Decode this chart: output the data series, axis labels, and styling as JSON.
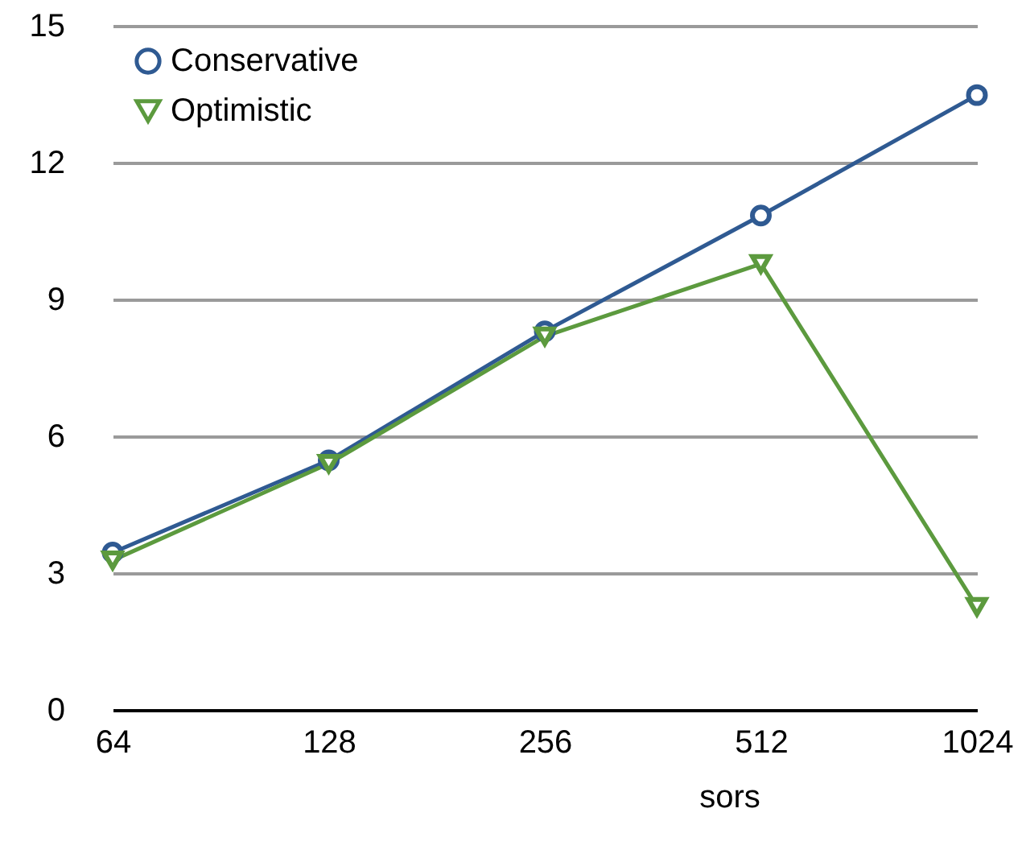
{
  "chart_data": {
    "type": "line",
    "xlabel": "sors",
    "categories": [
      "64",
      "128",
      "256",
      "512",
      "1024"
    ],
    "series": [
      {
        "name": "Conservative",
        "color": "#2f5a92",
        "marker": "circle",
        "values": [
          3.45,
          5.47,
          8.3,
          10.84,
          13.48
        ]
      },
      {
        "name": "Optimistic",
        "color": "#5c9a3e",
        "marker": "triangle-down",
        "values": [
          3.28,
          5.4,
          8.19,
          9.78,
          2.26
        ]
      }
    ],
    "ylim": [
      0,
      15
    ],
    "yticks": [
      0,
      3,
      6,
      9,
      12,
      15
    ],
    "grid": "y",
    "legend": "top left",
    "line_style": "solid"
  }
}
